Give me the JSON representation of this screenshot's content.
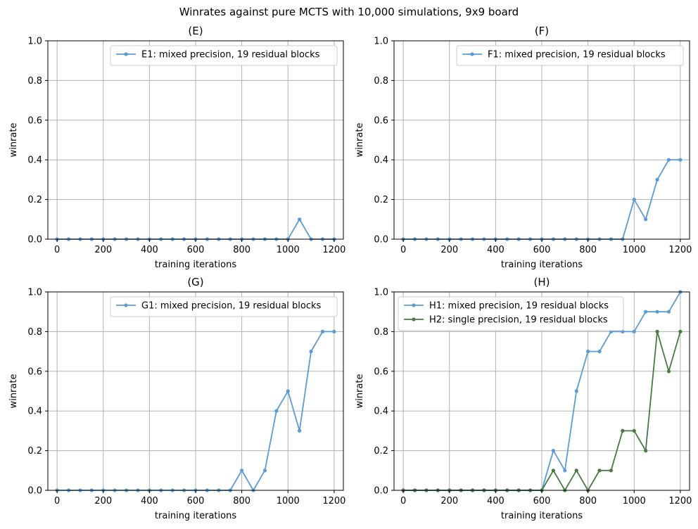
{
  "figure_title": "Winrates against pure MCTS with 10,000 simulations, 9x9 board",
  "colors": {
    "blue": "#5b9bd5",
    "green": "#4a7a44",
    "grid": "#b0b0b0",
    "axis": "#000000"
  },
  "chart_data": [
    {
      "type": "line",
      "title": "(E)",
      "xlabel": "training iterations",
      "ylabel": "winrate",
      "xlim": [
        -40,
        1240
      ],
      "ylim": [
        0,
        1.0
      ],
      "xticks": [
        0,
        200,
        400,
        600,
        800,
        1000,
        1200
      ],
      "yticks": [
        0.0,
        0.2,
        0.4,
        0.6,
        0.8,
        1.0
      ],
      "ytick_labels": [
        "0.0",
        "0.2",
        "0.4",
        "0.6",
        "0.8",
        "1.0"
      ],
      "grid": true,
      "legend_position": "upper-right",
      "x": [
        0,
        50,
        100,
        150,
        200,
        250,
        300,
        350,
        400,
        450,
        500,
        550,
        600,
        650,
        700,
        750,
        800,
        850,
        900,
        950,
        1000,
        1050,
        1100,
        1150,
        1200
      ],
      "series": [
        {
          "name": "E1: mixed precision, 19 residual blocks",
          "color": "#5b9bd5",
          "values": [
            0,
            0,
            0,
            0,
            0,
            0,
            0,
            0,
            0,
            0,
            0,
            0,
            0,
            0,
            0,
            0,
            0,
            0,
            0,
            0,
            0,
            0.1,
            0,
            0,
            0
          ]
        }
      ]
    },
    {
      "type": "line",
      "title": "(F)",
      "xlabel": "training iterations",
      "ylabel": "winrate",
      "xlim": [
        -40,
        1240
      ],
      "ylim": [
        0,
        1.0
      ],
      "xticks": [
        0,
        200,
        400,
        600,
        800,
        1000,
        1200
      ],
      "yticks": [
        0.0,
        0.2,
        0.4,
        0.6,
        0.8,
        1.0
      ],
      "ytick_labels": [
        "0.0",
        "0.2",
        "0.4",
        "0.6",
        "0.8",
        "1.0"
      ],
      "grid": true,
      "legend_position": "upper-right",
      "x": [
        0,
        50,
        100,
        150,
        200,
        250,
        300,
        350,
        400,
        450,
        500,
        550,
        600,
        650,
        700,
        750,
        800,
        850,
        900,
        950,
        1000,
        1050,
        1100,
        1150,
        1200
      ],
      "series": [
        {
          "name": "F1: mixed precision, 19 residual blocks",
          "color": "#5b9bd5",
          "values": [
            0,
            0,
            0,
            0,
            0,
            0,
            0,
            0,
            0,
            0,
            0,
            0,
            0,
            0,
            0,
            0,
            0,
            0,
            0,
            0,
            0.2,
            0.1,
            0.3,
            0.4,
            0.4
          ]
        }
      ]
    },
    {
      "type": "line",
      "title": "(G)",
      "xlabel": "training iterations",
      "ylabel": "winrate",
      "xlim": [
        -40,
        1240
      ],
      "ylim": [
        0,
        1.0
      ],
      "xticks": [
        0,
        200,
        400,
        600,
        800,
        1000,
        1200
      ],
      "yticks": [
        0.0,
        0.2,
        0.4,
        0.6,
        0.8,
        1.0
      ],
      "ytick_labels": [
        "0.0",
        "0.2",
        "0.4",
        "0.6",
        "0.8",
        "1.0"
      ],
      "grid": true,
      "legend_position": "upper-right",
      "x": [
        0,
        50,
        100,
        150,
        200,
        250,
        300,
        350,
        400,
        450,
        500,
        550,
        600,
        650,
        700,
        750,
        800,
        850,
        900,
        950,
        1000,
        1050,
        1100,
        1150,
        1200
      ],
      "series": [
        {
          "name": "G1: mixed precision, 19 residual blocks",
          "color": "#5b9bd5",
          "values": [
            0,
            0,
            0,
            0,
            0,
            0,
            0,
            0,
            0,
            0,
            0,
            0,
            0,
            0,
            0,
            0,
            0.1,
            0,
            0.1,
            0.4,
            0.5,
            0.3,
            0.7,
            0.8,
            0.8
          ]
        }
      ]
    },
    {
      "type": "line",
      "title": "(H)",
      "xlabel": "training iterations",
      "ylabel": "winrate",
      "xlim": [
        -40,
        1240
      ],
      "ylim": [
        0,
        1.0
      ],
      "xticks": [
        0,
        200,
        400,
        600,
        800,
        1000,
        1200
      ],
      "yticks": [
        0.0,
        0.2,
        0.4,
        0.6,
        0.8,
        1.0
      ],
      "ytick_labels": [
        "0.0",
        "0.2",
        "0.4",
        "0.6",
        "0.8",
        "1.0"
      ],
      "grid": true,
      "legend_position": "upper-left",
      "x": [
        0,
        50,
        100,
        150,
        200,
        250,
        300,
        350,
        400,
        450,
        500,
        550,
        600,
        650,
        700,
        750,
        800,
        850,
        900,
        950,
        1000,
        1050,
        1100,
        1150,
        1200
      ],
      "series": [
        {
          "name": "H1: mixed precision, 19 residual blocks",
          "color": "#5b9bd5",
          "values": [
            0,
            0,
            0,
            0,
            0,
            0,
            0,
            0,
            0,
            0,
            0,
            0,
            0,
            0.2,
            0.1,
            0.5,
            0.7,
            0.7,
            0.8,
            0.8,
            0.8,
            0.9,
            0.9,
            0.9,
            1.0
          ]
        },
        {
          "name": "H2: single precision, 19 residual blocks",
          "color": "#4a7a44",
          "values": [
            0,
            0,
            0,
            0,
            0,
            0,
            0,
            0,
            0,
            0,
            0,
            0,
            0,
            0.1,
            0,
            0.1,
            0,
            0.1,
            0.1,
            0.3,
            0.3,
            0.2,
            0.8,
            0.6,
            0.8
          ]
        }
      ]
    }
  ]
}
